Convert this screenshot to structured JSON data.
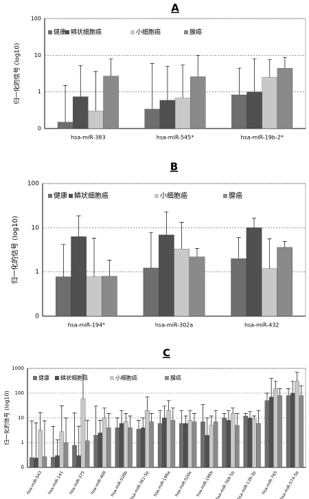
{
  "chart_data": [
    {
      "type": "bar",
      "title": "A",
      "ylabel": "归一化的信号 (log10)",
      "log_scale": true,
      "grid": true,
      "categories": [
        "hsa-miR-383",
        "hsa-miR-545*",
        "hsa-miR-19b-2*"
      ],
      "ylim": [
        0.1,
        100
      ],
      "yticks": [
        {
          "value": 0.1,
          "label": "0"
        },
        1,
        10,
        100
      ],
      "series": [
        {
          "name": "健康",
          "color": "#6e6e6e",
          "values": [
            0.15,
            0.34,
            0.83
          ],
          "errors": [
            1.35,
            5.6,
            3.6
          ]
        },
        {
          "name": "鳞状细胞癌",
          "color": "#505050",
          "values": [
            0.74,
            0.59,
            1.0
          ],
          "errors": [
            4.5,
            4.4,
            6.9
          ]
        },
        {
          "name": "小细胞癌",
          "color": "#c8c8c8",
          "values": [
            0.3,
            0.68,
            2.5
          ],
          "errors": [
            3.3,
            4.7,
            5.1
          ]
        },
        {
          "name": "腺癌",
          "color": "#8a8a8a",
          "values": [
            2.7,
            2.6,
            4.4
          ],
          "errors": [
            5.2,
            7.4,
            4.4
          ]
        }
      ]
    },
    {
      "type": "bar",
      "title": "B",
      "ylabel": "归一化的信号 (log10)",
      "log_scale": true,
      "grid": true,
      "categories": [
        "hsa-miR-194*",
        "hsa-miR-302a",
        "hsa-miR-432"
      ],
      "ylim": [
        0.1,
        100
      ],
      "yticks": [
        {
          "value": 0.1,
          "label": "0"
        },
        1,
        10,
        100
      ],
      "series": [
        {
          "name": "健康",
          "color": "#6e6e6e",
          "values": [
            0.78,
            1.23,
            2.0
          ],
          "errors": [
            3.4,
            6.6,
            4
          ]
        },
        {
          "name": "鳞状细胞癌",
          "color": "#505050",
          "values": [
            6.3,
            6.9,
            10
          ],
          "errors": [
            12.3,
            16,
            6.6
          ]
        },
        {
          "name": "小细胞癌",
          "color": "#c8c8c8",
          "values": [
            0.78,
            3.3,
            1.2
          ],
          "errors": [
            5.0,
            10,
            4.4
          ]
        },
        {
          "name": "腺癌",
          "color": "#8a8a8a",
          "values": [
            0.8,
            2.2,
            3.6
          ],
          "errors": [
            1.05,
            1.2,
            1.3
          ]
        }
      ]
    },
    {
      "type": "bar",
      "title": "C",
      "ylabel": "归一化的信号 (log10)",
      "log_scale": true,
      "grid": true,
      "categories": [
        "hsa-miR-543",
        "hsa-miR-141",
        "hsa-miR-375",
        "hsa-miR-409",
        "hsa-miR-520b",
        "hsa-miR-361-5p",
        "hsa-miR-196a",
        "hsa-miR-520e",
        "hsa-miR-196b",
        "hsa-miR-769-5p",
        "hsa-miR-139-3p",
        "hsa-miR-765",
        "hsa-miR-574-5p"
      ],
      "ylim": [
        0.1,
        1000
      ],
      "yticks": [
        {
          "value": 0.1,
          "label": "0"
        },
        1,
        10,
        100,
        1000
      ],
      "series": [
        {
          "name": "健康",
          "color": "#6e6e6e",
          "values": [
            0.25,
            0.26,
            0.78,
            2,
            4,
            3.5,
            6,
            6,
            7,
            10,
            12,
            50,
            80
          ],
          "errors": [
            7.4,
            4.3,
            15,
            28,
            6,
            4.5,
            14,
            14,
            28,
            5,
            3,
            50,
            70
          ]
        },
        {
          "name": "鳞状细胞癌",
          "color": "#505050",
          "values": [
            0.24,
            0.3,
            0.3,
            2.5,
            6,
            4,
            10,
            6,
            2,
            8,
            10,
            70,
            100
          ],
          "errors": [
            6.1,
            1,
            4.3,
            5.5,
            14,
            6,
            20,
            6,
            8,
            12,
            8,
            330,
            200
          ]
        },
        {
          "name": "小细胞癌",
          "color": "#c8c8c8",
          "values": [
            3.2,
            2.8,
            60,
            10,
            7,
            20,
            20,
            8,
            5,
            15,
            9,
            150,
            300
          ],
          "errors": [
            12.8,
            28,
            500,
            15,
            8,
            50,
            30,
            12,
            7,
            10,
            3,
            150,
            400
          ]
        },
        {
          "name": "腺癌",
          "color": "#8a8a8a",
          "values": [
            0.27,
            1,
            1.2,
            4,
            4,
            7,
            8,
            7,
            7,
            5,
            6,
            80,
            80
          ],
          "errors": [
            7.4,
            9,
            6.8,
            11,
            8,
            8,
            17,
            8,
            13,
            10,
            14,
            70,
            120
          ]
        }
      ]
    }
  ]
}
